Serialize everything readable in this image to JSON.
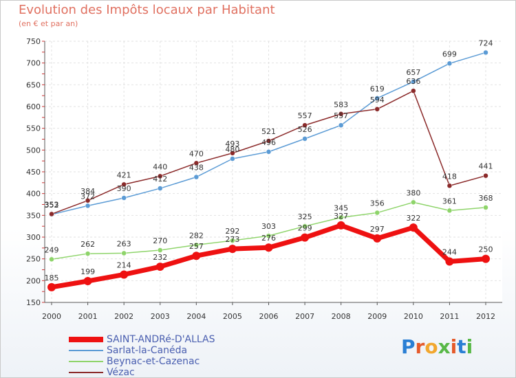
{
  "title": "Evolution des Impôts locaux par Habitant",
  "subtitle": "(en € et par an)",
  "logo": {
    "text": "Proxiti",
    "colors": [
      "#2a7fd4",
      "#e55a2b",
      "#f2a72e",
      "#58b847",
      "#e55a2b",
      "#2a7fd4",
      "#58b847"
    ]
  },
  "chart_data": {
    "type": "line",
    "title": "Evolution des Impôts locaux par Habitant",
    "subtitle": "(en € et par an)",
    "xlabel": "",
    "ylabel": "",
    "x": [
      "2000",
      "2001",
      "2002",
      "2003",
      "2004",
      "2005",
      "2006",
      "2007",
      "2008",
      "2009",
      "2010",
      "2011",
      "2012"
    ],
    "ylim": [
      150,
      750
    ],
    "yticks": [
      "150",
      "200",
      "250",
      "300",
      "350",
      "400",
      "450",
      "500",
      "550",
      "600",
      "650",
      "700",
      "750"
    ],
    "grid": true,
    "legend_position": "bottom-left",
    "series": [
      {
        "name": "SAINT-ANDRé-D'ALLAS",
        "color": "#ee1111",
        "values": [
          185,
          199,
          214,
          232,
          257,
          273,
          276,
          299,
          327,
          297,
          322,
          244,
          250
        ],
        "labels": [
          "185",
          "199",
          "214",
          "232",
          "257",
          "273",
          "276",
          "299",
          "327",
          "297",
          "322",
          "244",
          "250"
        ]
      },
      {
        "name": "Sarlat-la-Canéda",
        "color": "#5b9bd5",
        "values": [
          352,
          372,
          390,
          412,
          438,
          480,
          496,
          526,
          557,
          619,
          657,
          699,
          724
        ],
        "labels": [
          "352",
          "372",
          "390",
          "412",
          "438",
          "480",
          "496",
          "526",
          "557",
          "619",
          "657",
          "699",
          "724"
        ]
      },
      {
        "name": "Beynac-et-Cazenac",
        "color": "#8ed46a",
        "values": [
          249,
          262,
          263,
          270,
          282,
          292,
          303,
          325,
          345,
          356,
          380,
          361,
          368
        ],
        "labels": [
          "249",
          "262",
          "263",
          "270",
          "282",
          "292",
          "303",
          "325",
          "345",
          "356",
          "380",
          "361",
          "368"
        ]
      },
      {
        "name": "Vézac",
        "color": "#8b2a2a",
        "values": [
          353,
          384,
          421,
          440,
          470,
          493,
          521,
          557,
          583,
          594,
          636,
          418,
          441
        ],
        "labels": [
          "353",
          "384",
          "421",
          "440",
          "470",
          "493",
          "521",
          "557",
          "583",
          "594",
          "636",
          "418",
          "441"
        ]
      }
    ]
  }
}
